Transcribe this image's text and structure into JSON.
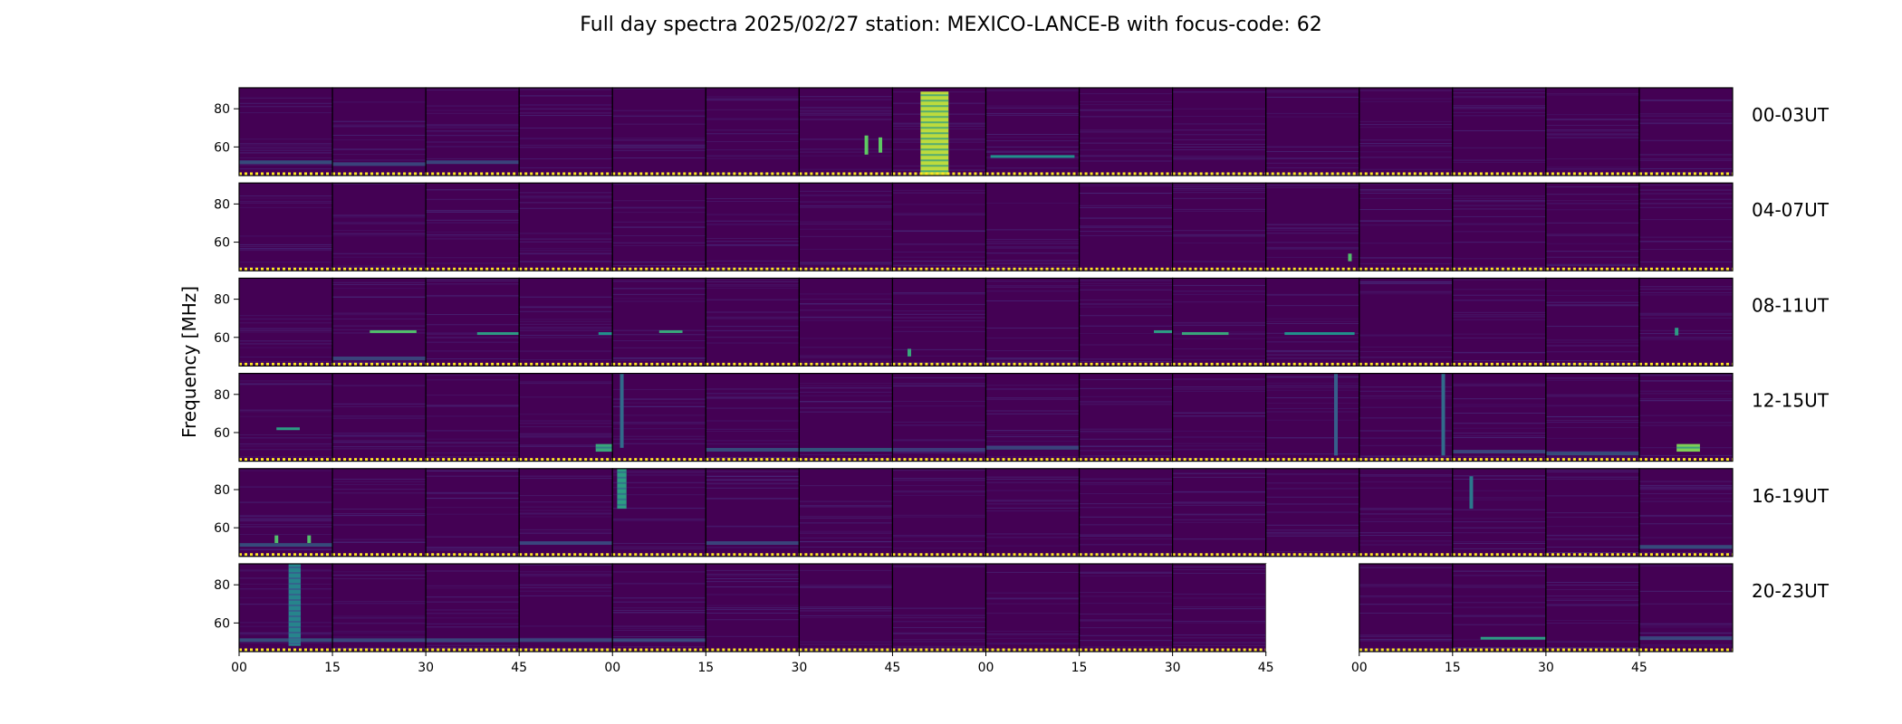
{
  "chart_data": {
    "type": "heatmap",
    "title": "Full day spectra 2025/02/27 station: MEXICO-LANCE-B with focus-code: 62",
    "ylabel": "Frequency [MHz]",
    "xlabel": "",
    "ylim": [
      45,
      91
    ],
    "yticks": [
      60,
      80
    ],
    "ytick_labels": [
      "60",
      "80"
    ],
    "xtick_labels": [
      "00",
      "15",
      "30",
      "45",
      "00",
      "15",
      "30",
      "45",
      "00",
      "15",
      "30",
      "45",
      "00",
      "15",
      "30",
      "45"
    ],
    "colormap": "viridis",
    "colors": {
      "background": "#440154",
      "low": "#482878",
      "mid": "#26828e",
      "high": "#b5de2b",
      "peak": "#fde725",
      "missing": "#ffffff"
    },
    "panels_per_row": 16,
    "missing_panels": [
      {
        "row": 5,
        "col": 11
      }
    ],
    "rows": [
      {
        "label": "00-03UT",
        "features": [
          {
            "col": 0,
            "kind": "band",
            "f": 52,
            "intensity": 0.35
          },
          {
            "col": 1,
            "kind": "band",
            "f": 51,
            "intensity": 0.3
          },
          {
            "col": 2,
            "kind": "band",
            "f": 52,
            "intensity": 0.3
          },
          {
            "col": 6,
            "kind": "burst",
            "t": 0.72,
            "f_low": 56,
            "f_high": 66,
            "intensity": 0.75
          },
          {
            "col": 6,
            "kind": "burst",
            "t": 0.87,
            "f_low": 57,
            "f_high": 65,
            "intensity": 0.75
          },
          {
            "col": 7,
            "kind": "block",
            "t0": 0.3,
            "t1": 0.6,
            "f_low": 45,
            "f_high": 89,
            "intensity": 0.9
          },
          {
            "col": 8,
            "kind": "line",
            "f": 55,
            "t0": 0.05,
            "t1": 0.95,
            "intensity": 0.5
          }
        ]
      },
      {
        "label": "04-07UT",
        "features": [
          {
            "col": 11,
            "kind": "burst",
            "t": 0.9,
            "f_low": 50,
            "f_high": 54,
            "intensity": 0.7
          }
        ]
      },
      {
        "label": "08-11UT",
        "features": [
          {
            "col": 1,
            "kind": "line",
            "f": 63,
            "t0": 0.4,
            "t1": 0.9,
            "intensity": 0.7
          },
          {
            "col": 1,
            "kind": "band",
            "f": 49,
            "intensity": 0.3
          },
          {
            "col": 2,
            "kind": "line",
            "f": 62,
            "t0": 0.55,
            "t1": 1.0,
            "intensity": 0.55
          },
          {
            "col": 3,
            "kind": "line",
            "f": 62,
            "t0": 0.85,
            "t1": 1.0,
            "intensity": 0.5
          },
          {
            "col": 4,
            "kind": "line",
            "f": 63,
            "t0": 0.5,
            "t1": 0.75,
            "intensity": 0.6
          },
          {
            "col": 7,
            "kind": "burst",
            "t": 0.18,
            "f_low": 50,
            "f_high": 54,
            "intensity": 0.6
          },
          {
            "col": 9,
            "kind": "line",
            "f": 63,
            "t0": 0.8,
            "t1": 1.0,
            "intensity": 0.55
          },
          {
            "col": 10,
            "kind": "line",
            "f": 62,
            "t0": 0.1,
            "t1": 0.6,
            "intensity": 0.6
          },
          {
            "col": 11,
            "kind": "line",
            "f": 62,
            "t0": 0.2,
            "t1": 0.95,
            "intensity": 0.5
          },
          {
            "col": 15,
            "kind": "burst",
            "t": 0.4,
            "f_low": 61,
            "f_high": 65,
            "intensity": 0.55
          }
        ]
      },
      {
        "label": "12-15UT",
        "features": [
          {
            "col": 0,
            "kind": "line",
            "f": 62,
            "t0": 0.4,
            "t1": 0.65,
            "intensity": 0.55
          },
          {
            "col": 3,
            "kind": "block",
            "t0": 0.82,
            "t1": 1.0,
            "f_low": 50,
            "f_high": 54,
            "intensity": 0.6
          },
          {
            "col": 4,
            "kind": "burst",
            "t": 0.1,
            "f_low": 52,
            "f_high": 91,
            "intensity": 0.35
          },
          {
            "col": 5,
            "kind": "band",
            "f": 51,
            "intensity": 0.35
          },
          {
            "col": 6,
            "kind": "band",
            "f": 51,
            "intensity": 0.4
          },
          {
            "col": 7,
            "kind": "band",
            "f": 51,
            "intensity": 0.25
          },
          {
            "col": 8,
            "kind": "band",
            "f": 52,
            "intensity": 0.3
          },
          {
            "col": 11,
            "kind": "burst",
            "t": 0.75,
            "f_low": 48,
            "f_high": 91,
            "intensity": 0.3
          },
          {
            "col": 12,
            "kind": "burst",
            "t": 0.9,
            "f_low": 48,
            "f_high": 91,
            "intensity": 0.35
          },
          {
            "col": 13,
            "kind": "band",
            "f": 50,
            "intensity": 0.3
          },
          {
            "col": 14,
            "kind": "band",
            "f": 49,
            "intensity": 0.35
          },
          {
            "col": 15,
            "kind": "block",
            "t0": 0.4,
            "t1": 0.65,
            "f_low": 50,
            "f_high": 54,
            "intensity": 0.8
          }
        ]
      },
      {
        "label": "16-19UT",
        "features": [
          {
            "col": 0,
            "kind": "band",
            "f": 51,
            "intensity": 0.35
          },
          {
            "col": 0,
            "kind": "burst",
            "t": 0.4,
            "f_low": 52,
            "f_high": 56,
            "intensity": 0.7
          },
          {
            "col": 0,
            "kind": "burst",
            "t": 0.75,
            "f_low": 52,
            "f_high": 56,
            "intensity": 0.7
          },
          {
            "col": 3,
            "kind": "band",
            "f": 52,
            "intensity": 0.3
          },
          {
            "col": 4,
            "kind": "block",
            "t0": 0.05,
            "t1": 0.15,
            "f_low": 70,
            "f_high": 91,
            "intensity": 0.55
          },
          {
            "col": 5,
            "kind": "band",
            "f": 52,
            "intensity": 0.3
          },
          {
            "col": 13,
            "kind": "burst",
            "t": 0.2,
            "f_low": 70,
            "f_high": 87,
            "intensity": 0.4
          },
          {
            "col": 15,
            "kind": "band",
            "f": 50,
            "intensity": 0.35
          }
        ]
      },
      {
        "label": "20-23UT",
        "features": [
          {
            "col": 0,
            "kind": "block",
            "t0": 0.53,
            "t1": 0.66,
            "f_low": 48,
            "f_high": 91,
            "intensity": 0.45
          },
          {
            "col": 0,
            "kind": "band",
            "f": 51,
            "intensity": 0.35
          },
          {
            "col": 1,
            "kind": "band",
            "f": 51,
            "intensity": 0.3
          },
          {
            "col": 2,
            "kind": "band",
            "f": 51,
            "intensity": 0.3
          },
          {
            "col": 3,
            "kind": "band",
            "f": 51,
            "intensity": 0.3
          },
          {
            "col": 4,
            "kind": "band",
            "f": 51,
            "intensity": 0.3
          },
          {
            "col": 13,
            "kind": "line",
            "f": 52,
            "t0": 0.3,
            "t1": 1.0,
            "intensity": 0.55
          },
          {
            "col": 15,
            "kind": "band",
            "f": 52,
            "intensity": 0.3
          }
        ]
      }
    ]
  }
}
